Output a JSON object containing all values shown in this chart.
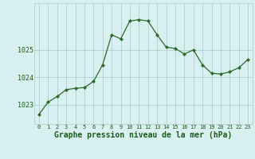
{
  "x": [
    0,
    1,
    2,
    3,
    4,
    5,
    6,
    7,
    8,
    9,
    10,
    11,
    12,
    13,
    14,
    15,
    16,
    17,
    18,
    19,
    20,
    21,
    22,
    23
  ],
  "y": [
    1022.65,
    1023.1,
    1023.3,
    1023.55,
    1023.6,
    1023.63,
    1023.85,
    1024.45,
    1025.55,
    1025.4,
    1026.05,
    1026.1,
    1026.05,
    1025.55,
    1025.1,
    1025.05,
    1024.85,
    1025.0,
    1024.45,
    1024.15,
    1024.12,
    1024.2,
    1024.35,
    1024.65
  ],
  "line_color": "#2d6a2d",
  "marker_color": "#2d6a2d",
  "bg_color": "#d8f0f0",
  "grid_color": "#a8c8c8",
  "xlabel": "Graphe pression niveau de la mer (hPa)",
  "xlabel_color": "#1a5c1a",
  "tick_color": "#1a5c1a",
  "yticks": [
    1023,
    1024,
    1025
  ],
  "ylim": [
    1022.3,
    1026.7
  ],
  "xlim": [
    -0.5,
    23.5
  ],
  "xtick_fontsize": 5.0,
  "ytick_fontsize": 6.0,
  "xlabel_fontsize": 7.0
}
